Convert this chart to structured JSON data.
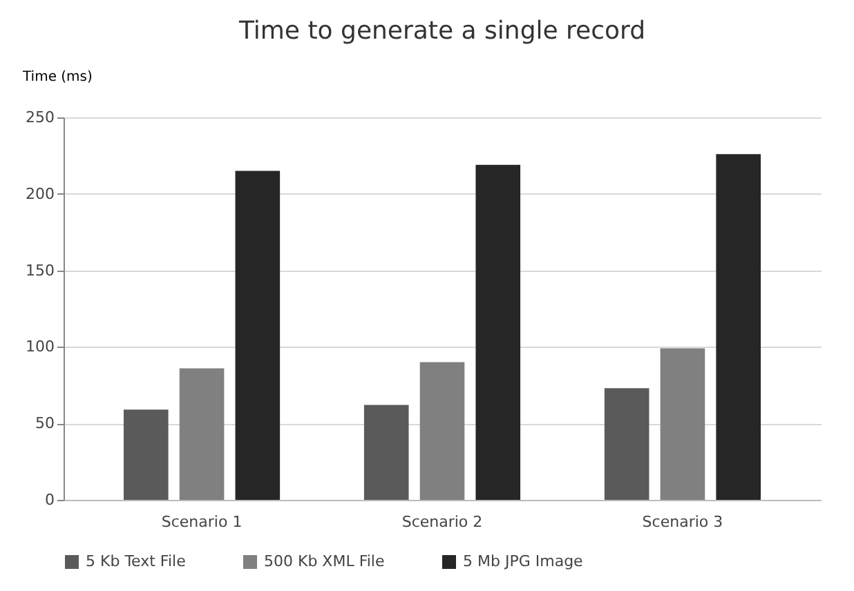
{
  "chart_data": {
    "type": "bar",
    "title": "Time to generate a single record",
    "ylabel": "Time (ms)",
    "categories": [
      "Scenario 1",
      "Scenario 2",
      "Scenario 3"
    ],
    "series": [
      {
        "name": "5 Kb Text File",
        "color": "#5a5a5a",
        "values": [
          59,
          62,
          73
        ]
      },
      {
        "name": "500 Kb XML File",
        "color": "#808080",
        "values": [
          86,
          90,
          99
        ]
      },
      {
        "name": "5 Mb JPG Image",
        "color": "#262626",
        "values": [
          215,
          219,
          226
        ]
      }
    ],
    "ylim": [
      0,
      250
    ],
    "yticks": [
      0,
      50,
      100,
      150,
      200,
      250
    ],
    "grid": "y",
    "legend": "bottom"
  }
}
